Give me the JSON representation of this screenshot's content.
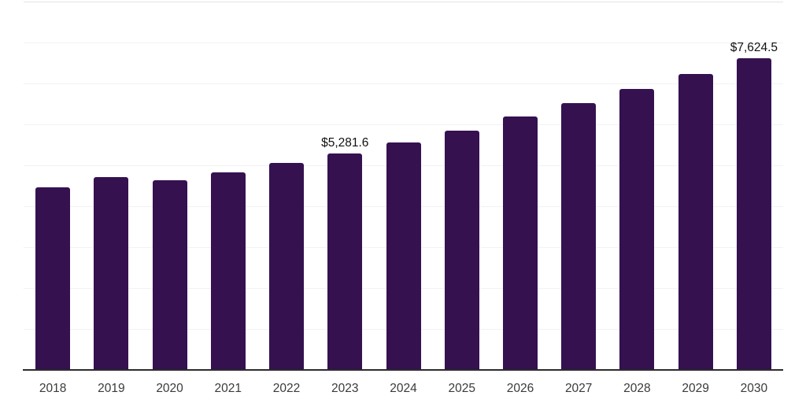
{
  "chart_data": {
    "type": "bar",
    "title": "",
    "xlabel": "",
    "ylabel": "",
    "categories": [
      "2018",
      "2019",
      "2020",
      "2021",
      "2022",
      "2023",
      "2024",
      "2025",
      "2026",
      "2027",
      "2028",
      "2029",
      "2030"
    ],
    "values": [
      4465,
      4715,
      4635,
      4820,
      5065,
      5281.6,
      5550,
      5855,
      6185,
      6510,
      6865,
      7240,
      7624.5
    ],
    "labeled_points": [
      {
        "category": "2023",
        "label": "$5,281.6"
      },
      {
        "category": "2030",
        "label": "$7,624.5"
      }
    ],
    "ylim": [
      0,
      9000
    ],
    "gridline_step": 1000,
    "grid": "horizontal",
    "legend": "none",
    "y_tick_labels_visible": false,
    "colors": {
      "bar": "#351150",
      "gridline": "#f2f2f2",
      "top_gridline": "#e4e4e4",
      "axis_line": "#2b2b2b",
      "tick_label": "#3a3a3a",
      "data_label": "#111111",
      "background": "#ffffff"
    }
  }
}
